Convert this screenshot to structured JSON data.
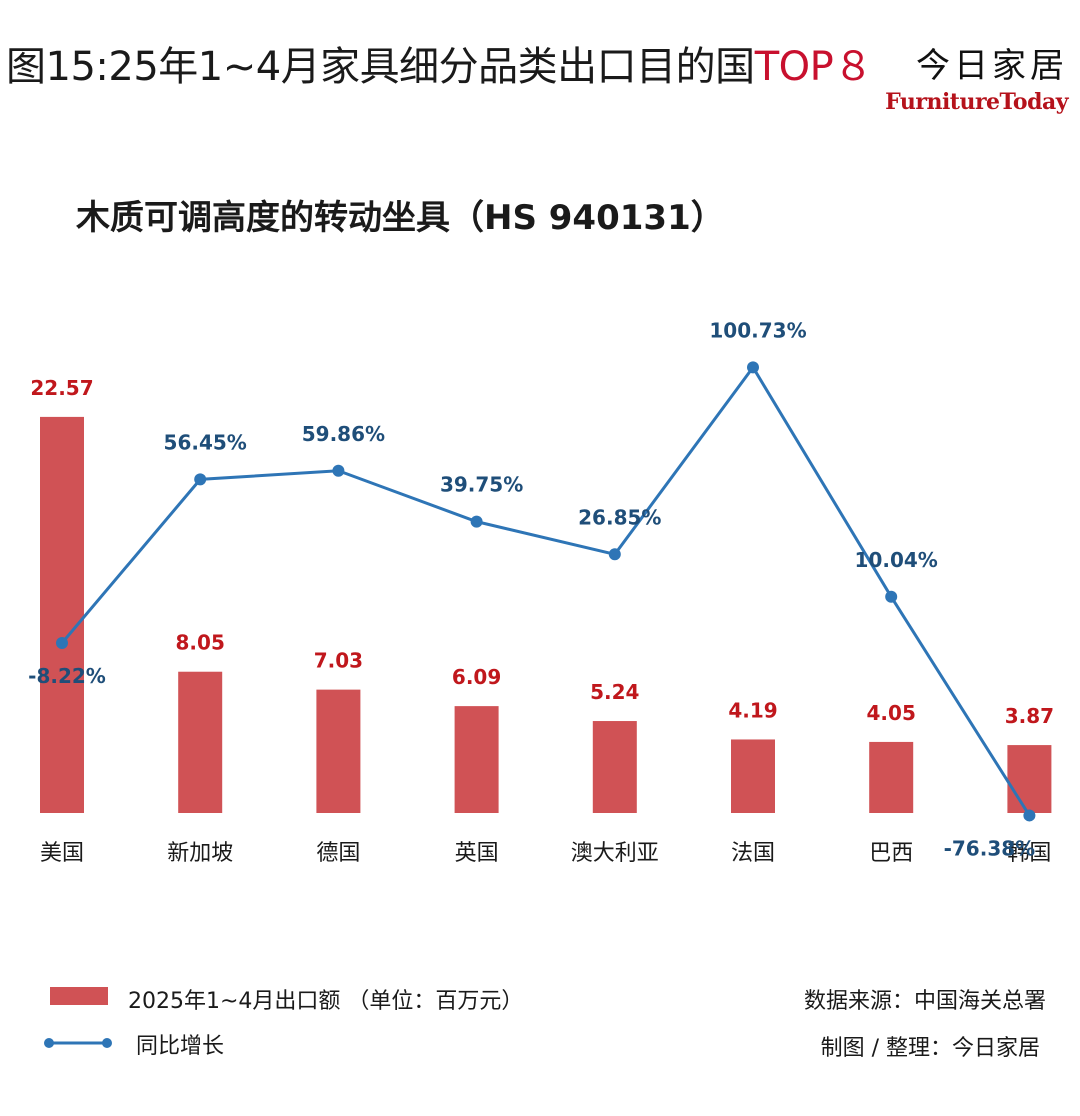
{
  "header": {
    "title_prefix": "图15:25年1~4月家具细分品类出口目的国",
    "title_accent": "TOP８",
    "brand_cn": "今日家居",
    "brand_en": "FurnitureToday"
  },
  "colors": {
    "bar": "#d05255",
    "bar_label": "#c0171c",
    "line": "#2e75b6",
    "line_label": "#1f4e79",
    "accent": "#c8102e"
  },
  "chart_data": {
    "type": "bar",
    "title": "木质可调高度的转动坐具（HS 940131）",
    "categories": [
      "美国",
      "新加坡",
      "德国",
      "英国",
      "澳大利亚",
      "法国",
      "巴西",
      "韩国"
    ],
    "series": [
      {
        "name": "2025年1~4月出口额 （单位：百万元）",
        "type": "bar",
        "values": [
          22.57,
          8.05,
          7.03,
          6.09,
          5.24,
          4.19,
          4.05,
          3.87
        ],
        "labels": [
          "22.57",
          "8.05",
          "7.03",
          "6.09",
          "5.24",
          "4.19",
          "4.05",
          "3.87"
        ]
      },
      {
        "name": "同比增长",
        "type": "line",
        "values": [
          -8.22,
          56.45,
          59.86,
          39.75,
          26.85,
          100.73,
          10.04,
          -76.38
        ],
        "labels": [
          "-8.22%",
          "56.45%",
          "59.86%",
          "39.75%",
          "26.85%",
          "100.73%",
          "10.04%",
          "-76.38%"
        ]
      }
    ],
    "grid": false,
    "legend": "bottom-left"
  },
  "footer": {
    "source": "数据来源：中国海关总署",
    "credit": "制图 /  整理：今日家居"
  }
}
